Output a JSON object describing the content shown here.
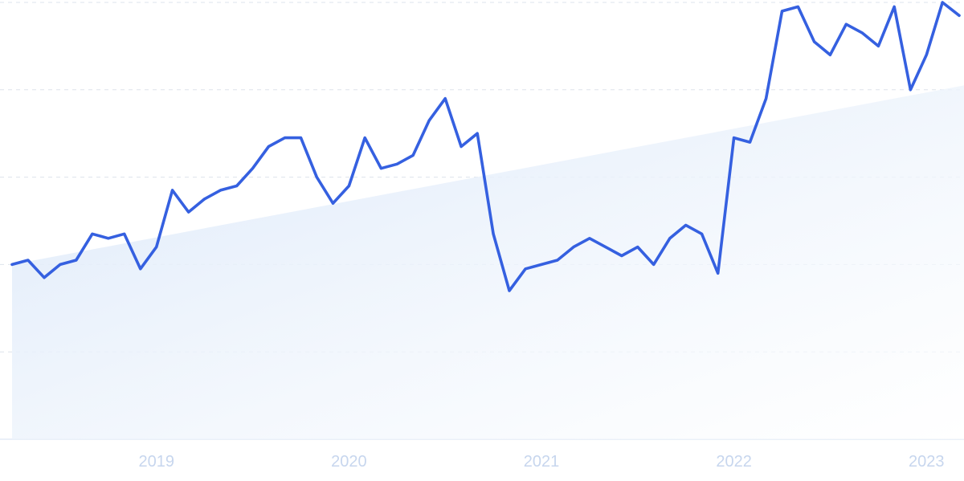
{
  "chart_data": {
    "type": "line",
    "title": "",
    "xlabel": "",
    "ylabel": "",
    "grid": true,
    "legend": "none",
    "x_ticks": [
      {
        "label": "2019",
        "x": 2019.0
      },
      {
        "label": "2020",
        "x": 2020.0
      },
      {
        "label": "2021",
        "x": 2021.0
      },
      {
        "label": "2022",
        "x": 2022.0
      },
      {
        "label": "2023",
        "x": 2023.0
      }
    ],
    "xlim": [
      2018.25,
      2023.17
    ],
    "ylim": [
      0,
      100
    ],
    "y_gridlines": [
      0,
      20,
      40,
      60,
      80,
      100
    ],
    "series": [
      {
        "color": "#3560e0",
        "x": [
          2018.25,
          2018.333,
          2018.417,
          2018.5,
          2018.583,
          2018.667,
          2018.75,
          2018.833,
          2018.917,
          2019.0,
          2019.083,
          2019.167,
          2019.25,
          2019.333,
          2019.417,
          2019.5,
          2019.583,
          2019.667,
          2019.75,
          2019.833,
          2019.917,
          2020.0,
          2020.083,
          2020.167,
          2020.25,
          2020.333,
          2020.417,
          2020.5,
          2020.583,
          2020.667,
          2020.75,
          2020.833,
          2020.917,
          2021.0,
          2021.083,
          2021.167,
          2021.25,
          2021.333,
          2021.417,
          2021.5,
          2021.583,
          2021.667,
          2021.75,
          2021.833,
          2021.917,
          2022.0,
          2022.083,
          2022.167,
          2022.25,
          2022.333,
          2022.417,
          2022.5,
          2022.583,
          2022.667,
          2022.75,
          2022.833,
          2022.917,
          2023.0,
          2023.083,
          2023.17
        ],
        "values": [
          40,
          41,
          37,
          40,
          41,
          47,
          46,
          47,
          39,
          44,
          57,
          52,
          55,
          57,
          58,
          62,
          67,
          69,
          69,
          60,
          54,
          58,
          69,
          62,
          63,
          65,
          73,
          78,
          67,
          70,
          47,
          34,
          39,
          40,
          41,
          44,
          46,
          44,
          42,
          44,
          40,
          46,
          49,
          47,
          38,
          69,
          68,
          78,
          98,
          99,
          91,
          88,
          95,
          93,
          90,
          99,
          80,
          88,
          100,
          97
        ]
      }
    ],
    "trend_area": {
      "color": "#dde9f9",
      "start": [
        2018.25,
        40
      ],
      "end": [
        2023.17,
        81
      ]
    }
  }
}
